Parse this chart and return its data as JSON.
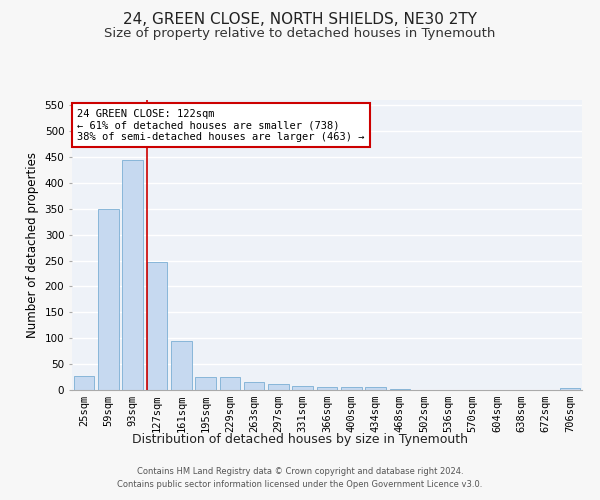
{
  "title1": "24, GREEN CLOSE, NORTH SHIELDS, NE30 2TY",
  "title2": "Size of property relative to detached houses in Tynemouth",
  "xlabel": "Distribution of detached houses by size in Tynemouth",
  "ylabel": "Number of detached properties",
  "categories": [
    "25sqm",
    "59sqm",
    "93sqm",
    "127sqm",
    "161sqm",
    "195sqm",
    "229sqm",
    "263sqm",
    "297sqm",
    "331sqm",
    "366sqm",
    "400sqm",
    "434sqm",
    "468sqm",
    "502sqm",
    "536sqm",
    "570sqm",
    "604sqm",
    "638sqm",
    "672sqm",
    "706sqm"
  ],
  "values": [
    27,
    350,
    445,
    248,
    95,
    25,
    25,
    15,
    12,
    8,
    6,
    5,
    5,
    1,
    0,
    0,
    0,
    0,
    0,
    0,
    4
  ],
  "bar_color": "#c6d9f0",
  "bar_edgecolor": "#7bafd4",
  "vline_color": "#cc0000",
  "annotation_text": "24 GREEN CLOSE: 122sqm\n← 61% of detached houses are smaller (738)\n38% of semi-detached houses are larger (463) →",
  "annotation_box_color": "#ffffff",
  "annotation_box_edgecolor": "#cc0000",
  "ylim": [
    0,
    560
  ],
  "yticks": [
    0,
    50,
    100,
    150,
    200,
    250,
    300,
    350,
    400,
    450,
    500,
    550
  ],
  "footer1": "Contains HM Land Registry data © Crown copyright and database right 2024.",
  "footer2": "Contains public sector information licensed under the Open Government Licence v3.0.",
  "fig_background_color": "#f7f7f7",
  "axes_background_color": "#eef2f8",
  "grid_color": "#ffffff",
  "title1_fontsize": 11,
  "title2_fontsize": 9.5,
  "tick_fontsize": 7.5,
  "ylabel_fontsize": 8.5,
  "xlabel_fontsize": 9,
  "footer_fontsize": 6,
  "annotation_fontsize": 7.5
}
